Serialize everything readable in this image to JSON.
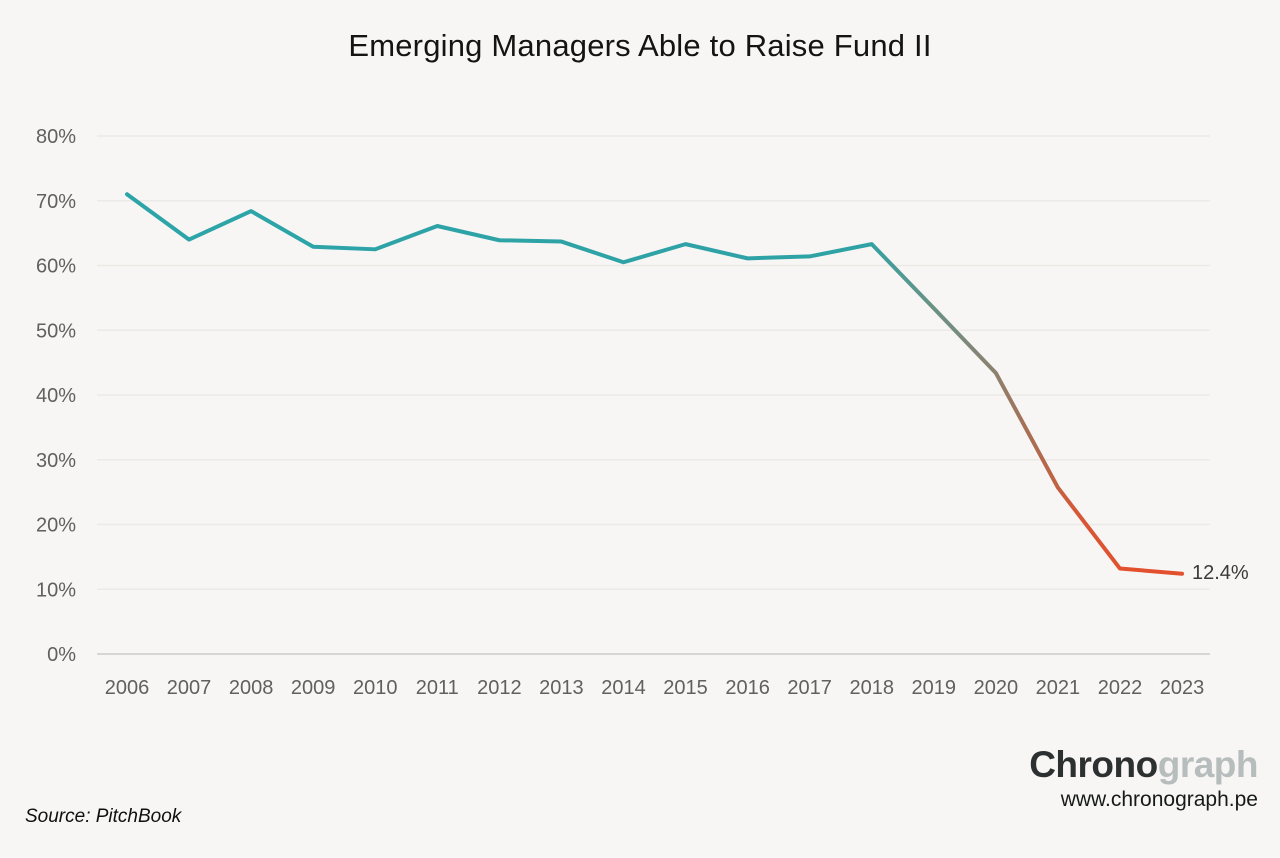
{
  "header": {
    "title": "Emerging Managers Able to Raise Fund II"
  },
  "chart_data": {
    "type": "line",
    "title": "Emerging Managers Able to Raise Fund II",
    "categories": [
      "2006",
      "2007",
      "2008",
      "2009",
      "2010",
      "2011",
      "2012",
      "2013",
      "2014",
      "2015",
      "2016",
      "2017",
      "2018",
      "2019",
      "2020",
      "2021",
      "2022",
      "2023"
    ],
    "series": [
      {
        "name": "Emerging Managers Able to Raise Fund II",
        "values": [
          71.0,
          64.0,
          68.4,
          62.9,
          62.5,
          66.1,
          63.9,
          63.7,
          60.5,
          63.3,
          61.1,
          61.4,
          63.3,
          53.4,
          43.4,
          25.7,
          13.2,
          12.4
        ]
      }
    ],
    "xlabel": "",
    "ylabel": "",
    "ylim": [
      0,
      80
    ],
    "y_ticks": [
      {
        "value": 0,
        "label": "0%"
      },
      {
        "value": 10,
        "label": "10%"
      },
      {
        "value": 20,
        "label": "20%"
      },
      {
        "value": 30,
        "label": "30%"
      },
      {
        "value": 40,
        "label": "40%"
      },
      {
        "value": 50,
        "label": "50%"
      },
      {
        "value": 60,
        "label": "60%"
      },
      {
        "value": 70,
        "label": "70%"
      },
      {
        "value": 80,
        "label": "80%"
      }
    ],
    "grid": "horizontal",
    "legend": "none",
    "end_label": "12.4%",
    "line_gradient": [
      {
        "offset": 0.0,
        "color": "#2CA4A8"
      },
      {
        "offset": 0.7,
        "color": "#2FA2A5"
      },
      {
        "offset": 0.76,
        "color": "#679387"
      },
      {
        "offset": 0.82,
        "color": "#8B8270"
      },
      {
        "offset": 0.86,
        "color": "#AC6C50"
      },
      {
        "offset": 0.9,
        "color": "#D55837"
      },
      {
        "offset": 0.94,
        "color": "#E2502E"
      },
      {
        "offset": 1.0,
        "color": "#E2502E"
      }
    ]
  },
  "footer": {
    "source": "Source: PitchBook",
    "logo_primary": "Chrono",
    "logo_secondary": "graph",
    "logo_url": "www.chronograph.pe"
  },
  "colors": {
    "background": "#F7F6F4",
    "gridline": "#ECEAE6",
    "axis_line": "#D8D6D2",
    "tick_label": "#606060",
    "title_text": "#141414",
    "annotation_text": "#3A3A3A",
    "logo_dark": "#2C3030",
    "logo_light": "#B7BDBD",
    "teal": "#2CA4A8",
    "orange_red": "#E2502E"
  }
}
